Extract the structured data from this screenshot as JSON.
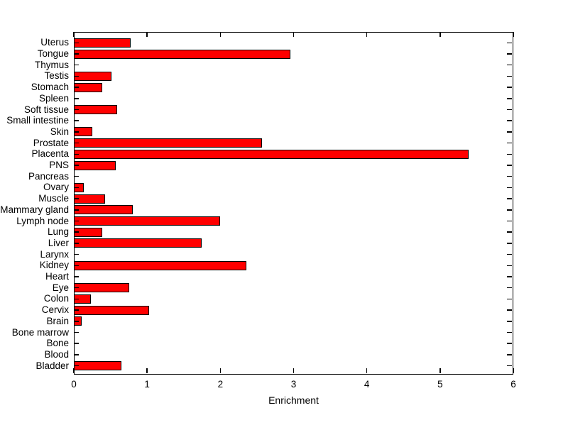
{
  "figure": {
    "background": "#ffffff",
    "frame_color": "#000000"
  },
  "chart_data": {
    "type": "bar",
    "orientation": "horizontal",
    "title": "",
    "xlabel": "Enrichment",
    "ylabel": "",
    "xlim": [
      0,
      6
    ],
    "xticks": [
      0,
      1,
      2,
      3,
      4,
      5,
      6
    ],
    "grid": false,
    "legend": null,
    "bar_color": "#ff0000",
    "bar_edge_color": "#000000",
    "categories": [
      "Uterus",
      "Tongue",
      "Thymus",
      "Testis",
      "Stomach",
      "Spleen",
      "Soft tissue",
      "Small intestine",
      "Skin",
      "Prostate",
      "Placenta",
      "PNS",
      "Pancreas",
      "Ovary",
      "Muscle",
      "Mammary gland",
      "Lymph node",
      "Lung",
      "Liver",
      "Larynx",
      "Kidney",
      "Heart",
      "Eye",
      "Colon",
      "Cervix",
      "Brain",
      "Bone marrow",
      "Bone",
      "Blood",
      "Bladder"
    ],
    "values": [
      0.78,
      2.96,
      0,
      0.51,
      0.39,
      0,
      0.59,
      0,
      0.25,
      2.57,
      5.39,
      0.57,
      0,
      0.14,
      0.43,
      0.8,
      2.0,
      0.39,
      1.74,
      0,
      2.36,
      0,
      0.76,
      0.23,
      1.03,
      0.11,
      0,
      0,
      0,
      0.65
    ]
  }
}
